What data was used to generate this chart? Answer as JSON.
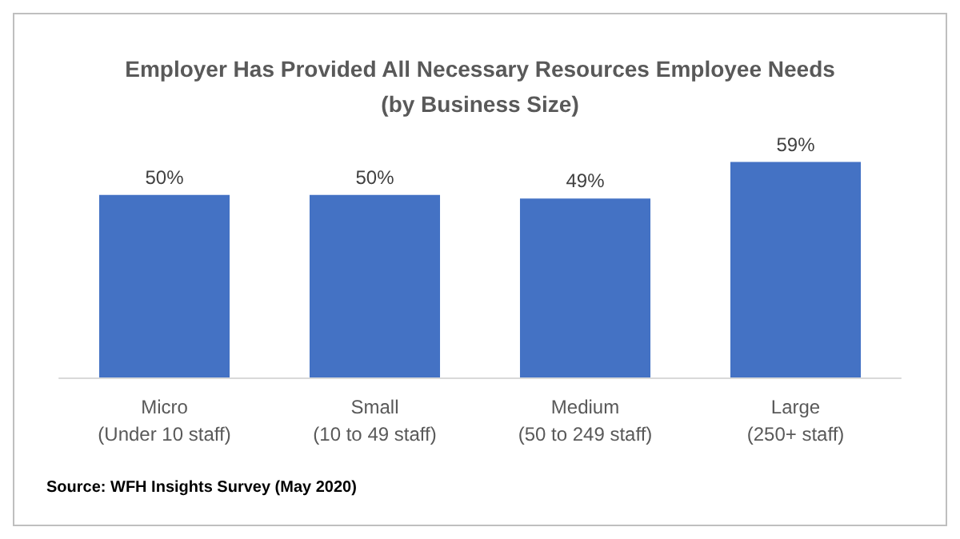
{
  "chart_data": {
    "type": "bar",
    "title": "Employer Has Provided All Necessary Resources Employee Needs\n(by Business Size)",
    "categories": [
      "Micro\n(Under 10 staff)",
      "Small\n(10 to 49 staff)",
      "Medium\n(50 to 249 staff)",
      "Large\n(250+ staff)"
    ],
    "values": [
      50,
      50,
      49,
      59
    ],
    "value_labels": [
      "50%",
      "50%",
      "49%",
      "59%"
    ],
    "color": "#4472c4",
    "annotations": [
      "Source: WFH Insights Survey (May 2020)"
    ]
  }
}
